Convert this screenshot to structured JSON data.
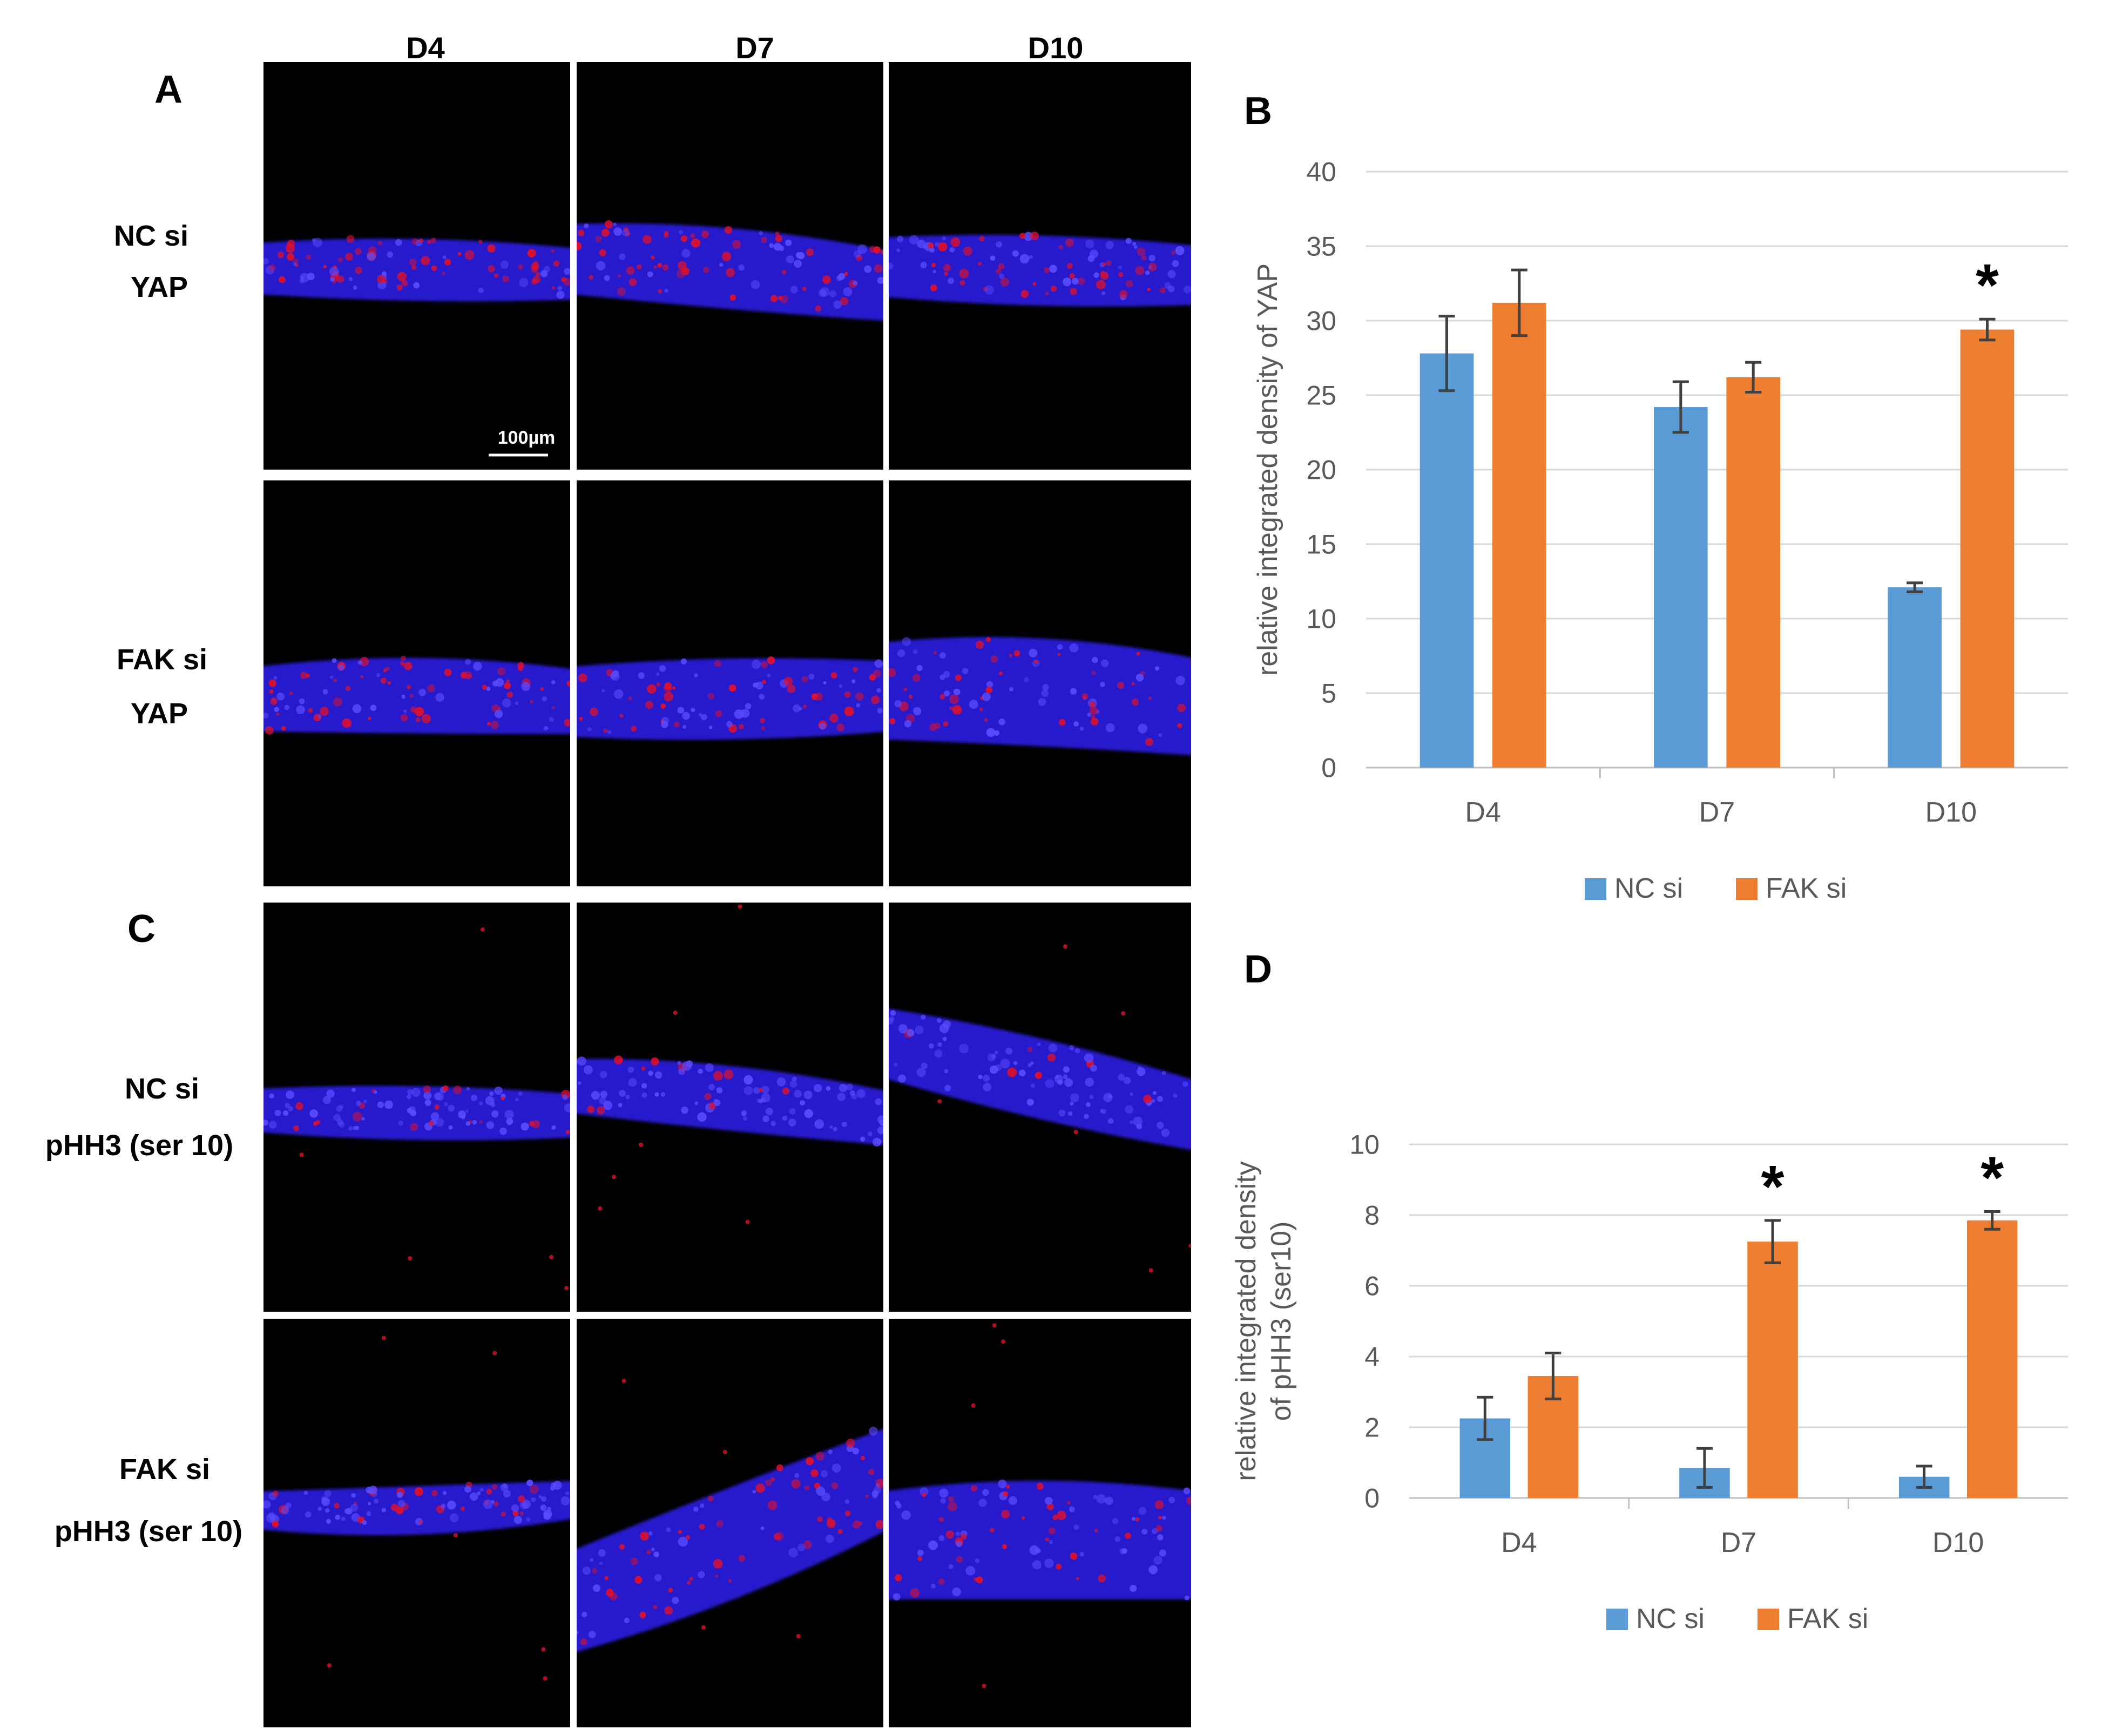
{
  "figure": {
    "panel_labels": [
      "A",
      "B",
      "C",
      "D"
    ],
    "day_headers": [
      "D4",
      "D7",
      "D10"
    ],
    "row_labels_A": [
      {
        "line1": "NC si",
        "line2": "YAP"
      },
      {
        "line1": "FAK si",
        "line2": "YAP"
      }
    ],
    "row_labels_C": [
      {
        "line1": "NC si",
        "line2": "pHH3 (ser 10)"
      },
      {
        "line1": "FAK si",
        "line2": "pHH3 (ser 10)"
      }
    ],
    "scale_bar_label": "100µm",
    "colors": {
      "nc_si": "#5B9BD5",
      "fak_si": "#ED7D31",
      "background_micrograph": "#000000",
      "nuclear_stain": "#2a1fd8",
      "marker_stain": "#e0102a"
    }
  },
  "chart_data": [
    {
      "panel": "B",
      "type": "bar",
      "categories": [
        "D4",
        "D7",
        "D10"
      ],
      "series": [
        {
          "name": "NC si",
          "color": "#5B9BD5",
          "values": [
            27.8,
            24.2,
            12.1
          ],
          "errors": [
            2.5,
            1.7,
            0.3
          ]
        },
        {
          "name": "FAK si",
          "color": "#ED7D31",
          "values": [
            31.2,
            26.2,
            29.4
          ],
          "errors": [
            2.2,
            1.0,
            0.7
          ]
        }
      ],
      "ylabel": "relative integrated density of YAP",
      "xlabel": "",
      "ylim": [
        0,
        40
      ],
      "yticks": [
        0,
        5,
        10,
        15,
        20,
        25,
        30,
        35,
        40
      ],
      "significance": [
        {
          "category": "D10",
          "series": "FAK si",
          "mark": "*"
        }
      ],
      "legend": "bottom",
      "grid": true
    },
    {
      "panel": "D",
      "type": "bar",
      "categories": [
        "D4",
        "D7",
        "D10"
      ],
      "series": [
        {
          "name": "NC si",
          "color": "#5B9BD5",
          "values": [
            2.25,
            0.85,
            0.6
          ],
          "errors": [
            0.6,
            0.55,
            0.3
          ]
        },
        {
          "name": "FAK si",
          "color": "#ED7D31",
          "values": [
            3.45,
            7.25,
            7.85
          ],
          "errors": [
            0.65,
            0.6,
            0.25
          ]
        }
      ],
      "ylabel": "relative integrated density of pHH3 (ser10)",
      "ylabel_lines": [
        "relative integrated density",
        "of pHH3 (ser10)"
      ],
      "xlabel": "",
      "ylim": [
        0,
        10
      ],
      "yticks": [
        0,
        2,
        4,
        6,
        8,
        10
      ],
      "significance": [
        {
          "category": "D7",
          "series": "FAK si",
          "mark": "*"
        },
        {
          "category": "D10",
          "series": "FAK si",
          "mark": "*"
        }
      ],
      "legend": "bottom",
      "grid": true
    }
  ]
}
